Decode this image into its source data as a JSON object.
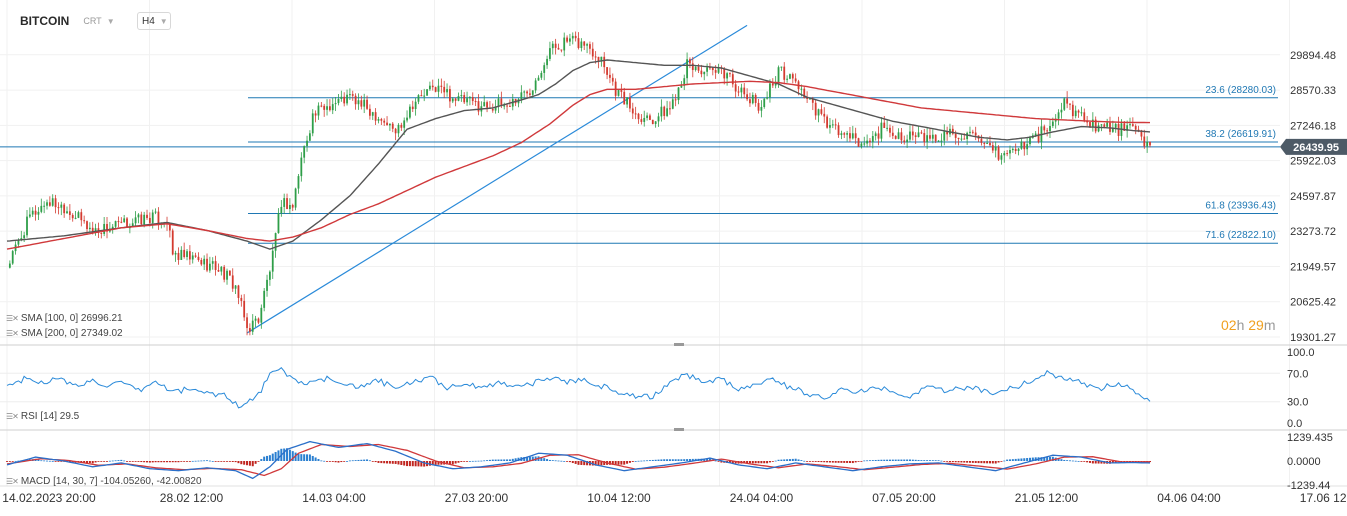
{
  "header": {
    "symbol": "BITCOIN",
    "chart_type": "CRT",
    "timeframe": "H4"
  },
  "indicators": {
    "sma100": "SMA [100, 0] 26996.21",
    "sma200": "SMA [200, 0] 27349.02",
    "rsi": "RSI [14] 29.5",
    "macd": "MACD [14, 30, 7] -104.05260, -42.00820"
  },
  "timer": {
    "hours": "02",
    "h": "h",
    "minutes": "29",
    "m": "m"
  },
  "colors": {
    "price_up": "#2e9e48",
    "price_down": "#d43a2f",
    "sma100": "#555555",
    "sma200": "#d0393b",
    "fib": "#1f78b4",
    "trend": "#2a8ad9",
    "rsi": "#2a8ad9",
    "macd_line": "#2a6fc9",
    "signal": "#d0393b",
    "current_price_bg": "#4d5a66"
  },
  "chart_data": {
    "type": "candlestick",
    "x_ticks": [
      "14.02.2023 20:00",
      "28.02 12:00",
      "14.03 04:00",
      "27.03 20:00",
      "10.04 12:00",
      "24.04 04:00",
      "07.05 20:00",
      "21.05 12:00",
      "04.06 04:00",
      "17.06 12:00"
    ],
    "y_ticks": [
      "29894.48",
      "28570.33",
      "27246.18",
      "25922.03",
      "24597.87",
      "23273.72",
      "21949.57",
      "20625.42",
      "19301.27"
    ],
    "ylim": [
      19301.27,
      31000
    ],
    "current_price": "26439.95",
    "fib_levels": [
      {
        "label": "23.6 (28280.03)",
        "value": 28280.03
      },
      {
        "label": "38.2 (26619.91)",
        "value": 26619.91
      },
      {
        "label": "61.8 (23936.43)",
        "value": 23936.43
      },
      {
        "label": "71.6 (22822.10)",
        "value": 22822.1
      }
    ],
    "series": [
      {
        "name": "BITCOIN",
        "kind": "close",
        "anchors": [
          [
            0,
            21900
          ],
          [
            8,
            23800
          ],
          [
            14,
            24400
          ],
          [
            20,
            24200
          ],
          [
            30,
            23300
          ],
          [
            40,
            23500
          ],
          [
            50,
            23800
          ],
          [
            56,
            23700
          ],
          [
            58,
            22400
          ],
          [
            66,
            22200
          ],
          [
            74,
            21900
          ],
          [
            80,
            21200
          ],
          [
            84,
            19600
          ],
          [
            88,
            20000
          ],
          [
            93,
            22300
          ],
          [
            96,
            24400
          ],
          [
            100,
            24200
          ],
          [
            103,
            26000
          ],
          [
            107,
            27600
          ],
          [
            112,
            28000
          ],
          [
            120,
            28300
          ],
          [
            130,
            27600
          ],
          [
            136,
            27000
          ],
          [
            142,
            28100
          ],
          [
            150,
            28700
          ],
          [
            158,
            28200
          ],
          [
            166,
            28000
          ],
          [
            175,
            28000
          ],
          [
            183,
            28600
          ],
          [
            190,
            30100
          ],
          [
            196,
            30400
          ],
          [
            202,
            30300
          ],
          [
            208,
            29800
          ],
          [
            213,
            28600
          ],
          [
            220,
            27700
          ],
          [
            226,
            27500
          ],
          [
            232,
            27900
          ],
          [
            238,
            29500
          ],
          [
            246,
            29200
          ],
          [
            252,
            29200
          ],
          [
            258,
            28300
          ],
          [
            264,
            28000
          ],
          [
            270,
            29300
          ],
          [
            276,
            28900
          ],
          [
            282,
            27900
          ],
          [
            288,
            27200
          ],
          [
            294,
            26800
          ],
          [
            300,
            26500
          ],
          [
            306,
            27100
          ],
          [
            312,
            26900
          ],
          [
            318,
            26800
          ],
          [
            324,
            26700
          ],
          [
            330,
            27000
          ],
          [
            336,
            26900
          ],
          [
            342,
            26400
          ],
          [
            348,
            26100
          ],
          [
            354,
            26400
          ],
          [
            360,
            26800
          ],
          [
            366,
            27300
          ],
          [
            370,
            28100
          ],
          [
            376,
            27600
          ],
          [
            382,
            27200
          ],
          [
            388,
            27100
          ],
          [
            394,
            27100
          ],
          [
            400,
            26400
          ]
        ]
      },
      {
        "name": "SMA [100, 0]",
        "kind": "sma",
        "anchors": [
          [
            0,
            22900
          ],
          [
            20,
            23100
          ],
          [
            40,
            23400
          ],
          [
            56,
            23600
          ],
          [
            70,
            23300
          ],
          [
            84,
            22900
          ],
          [
            92,
            22600
          ],
          [
            100,
            22900
          ],
          [
            110,
            23700
          ],
          [
            120,
            24600
          ],
          [
            130,
            25800
          ],
          [
            140,
            27100
          ],
          [
            150,
            27500
          ],
          [
            160,
            27800
          ],
          [
            170,
            27900
          ],
          [
            180,
            28200
          ],
          [
            186,
            28400
          ],
          [
            192,
            28800
          ],
          [
            198,
            29300
          ],
          [
            204,
            29600
          ],
          [
            210,
            29700
          ],
          [
            220,
            29600
          ],
          [
            230,
            29500
          ],
          [
            240,
            29500
          ],
          [
            250,
            29400
          ],
          [
            260,
            29100
          ],
          [
            270,
            28800
          ],
          [
            280,
            28300
          ],
          [
            290,
            28000
          ],
          [
            300,
            27700
          ],
          [
            310,
            27400
          ],
          [
            320,
            27200
          ],
          [
            330,
            27000
          ],
          [
            340,
            26800
          ],
          [
            350,
            26700
          ],
          [
            358,
            26800
          ],
          [
            366,
            27000
          ],
          [
            376,
            27200
          ],
          [
            386,
            27150
          ],
          [
            394,
            27050
          ],
          [
            400,
            27000
          ]
        ]
      },
      {
        "name": "SMA [200, 0]",
        "kind": "sma",
        "anchors": [
          [
            0,
            22600
          ],
          [
            20,
            23000
          ],
          [
            40,
            23400
          ],
          [
            56,
            23550
          ],
          [
            70,
            23300
          ],
          [
            84,
            23000
          ],
          [
            92,
            22900
          ],
          [
            100,
            23050
          ],
          [
            110,
            23400
          ],
          [
            120,
            23900
          ],
          [
            130,
            24300
          ],
          [
            140,
            24800
          ],
          [
            150,
            25300
          ],
          [
            160,
            25700
          ],
          [
            170,
            26100
          ],
          [
            180,
            26600
          ],
          [
            190,
            27300
          ],
          [
            198,
            28000
          ],
          [
            204,
            28400
          ],
          [
            210,
            28600
          ],
          [
            220,
            28600
          ],
          [
            230,
            28700
          ],
          [
            240,
            28800
          ],
          [
            250,
            28850
          ],
          [
            260,
            28900
          ],
          [
            270,
            28850
          ],
          [
            280,
            28700
          ],
          [
            290,
            28500
          ],
          [
            300,
            28300
          ],
          [
            310,
            28100
          ],
          [
            320,
            27900
          ],
          [
            330,
            27800
          ],
          [
            340,
            27700
          ],
          [
            350,
            27600
          ],
          [
            360,
            27500
          ],
          [
            370,
            27450
          ],
          [
            380,
            27400
          ],
          [
            390,
            27360
          ],
          [
            400,
            27350
          ]
        ]
      },
      {
        "name": "RSI [14]",
        "kind": "rsi",
        "anchors": [
          [
            0,
            52
          ],
          [
            6,
            62
          ],
          [
            12,
            58
          ],
          [
            18,
            62
          ],
          [
            24,
            52
          ],
          [
            30,
            60
          ],
          [
            36,
            52
          ],
          [
            40,
            56
          ],
          [
            46,
            45
          ],
          [
            52,
            58
          ],
          [
            58,
            44
          ],
          [
            64,
            48
          ],
          [
            70,
            42
          ],
          [
            76,
            40
          ],
          [
            82,
            22
          ],
          [
            88,
            40
          ],
          [
            92,
            68
          ],
          [
            96,
            75
          ],
          [
            100,
            62
          ],
          [
            106,
            55
          ],
          [
            112,
            62
          ],
          [
            118,
            57
          ],
          [
            124,
            50
          ],
          [
            130,
            60
          ],
          [
            136,
            48
          ],
          [
            142,
            58
          ],
          [
            148,
            64
          ],
          [
            154,
            50
          ],
          [
            160,
            56
          ],
          [
            166,
            48
          ],
          [
            172,
            58
          ],
          [
            178,
            52
          ],
          [
            184,
            56
          ],
          [
            190,
            64
          ],
          [
            196,
            58
          ],
          [
            202,
            62
          ],
          [
            208,
            52
          ],
          [
            214,
            44
          ],
          [
            220,
            38
          ],
          [
            226,
            36
          ],
          [
            232,
            58
          ],
          [
            238,
            68
          ],
          [
            244,
            58
          ],
          [
            250,
            62
          ],
          [
            256,
            46
          ],
          [
            262,
            56
          ],
          [
            268,
            62
          ],
          [
            274,
            50
          ],
          [
            280,
            42
          ],
          [
            286,
            36
          ],
          [
            292,
            48
          ],
          [
            298,
            42
          ],
          [
            304,
            52
          ],
          [
            310,
            45
          ],
          [
            316,
            38
          ],
          [
            322,
            52
          ],
          [
            328,
            44
          ],
          [
            334,
            50
          ],
          [
            340,
            48
          ],
          [
            346,
            42
          ],
          [
            352,
            50
          ],
          [
            358,
            58
          ],
          [
            364,
            70
          ],
          [
            370,
            64
          ],
          [
            376,
            56
          ],
          [
            382,
            48
          ],
          [
            388,
            56
          ],
          [
            394,
            48
          ],
          [
            400,
            30
          ]
        ]
      },
      {
        "name": "MACD",
        "kind": "macd",
        "anchors": [
          [
            0,
            -200
          ],
          [
            10,
            200
          ],
          [
            20,
            0
          ],
          [
            30,
            -300
          ],
          [
            40,
            -100
          ],
          [
            50,
            -400
          ],
          [
            60,
            -500
          ],
          [
            70,
            -350
          ],
          [
            80,
            -500
          ],
          [
            86,
            -900
          ],
          [
            92,
            -300
          ],
          [
            98,
            600
          ],
          [
            106,
            1000
          ],
          [
            116,
            700
          ],
          [
            126,
            900
          ],
          [
            136,
            500
          ],
          [
            146,
            -100
          ],
          [
            156,
            -400
          ],
          [
            166,
            -300
          ],
          [
            176,
            -100
          ],
          [
            186,
            400
          ],
          [
            196,
            300
          ],
          [
            206,
            -200
          ],
          [
            216,
            -500
          ],
          [
            226,
            -300
          ],
          [
            236,
            -100
          ],
          [
            246,
            150
          ],
          [
            256,
            -200
          ],
          [
            266,
            -400
          ],
          [
            276,
            -100
          ],
          [
            286,
            -300
          ],
          [
            296,
            -500
          ],
          [
            306,
            -300
          ],
          [
            316,
            -150
          ],
          [
            326,
            -100
          ],
          [
            336,
            -300
          ],
          [
            346,
            -500
          ],
          [
            356,
            -100
          ],
          [
            366,
            300
          ],
          [
            376,
            200
          ],
          [
            386,
            -100
          ],
          [
            394,
            -80
          ],
          [
            400,
            -104
          ]
        ]
      },
      {
        "name": "Signal",
        "kind": "signal",
        "anchors": [
          [
            0,
            -150
          ],
          [
            12,
            120
          ],
          [
            22,
            20
          ],
          [
            32,
            -220
          ],
          [
            42,
            -150
          ],
          [
            52,
            -350
          ],
          [
            62,
            -450
          ],
          [
            72,
            -380
          ],
          [
            82,
            -450
          ],
          [
            90,
            -750
          ],
          [
            96,
            -400
          ],
          [
            102,
            400
          ],
          [
            110,
            850
          ],
          [
            120,
            750
          ],
          [
            130,
            850
          ],
          [
            140,
            550
          ],
          [
            150,
            0
          ],
          [
            160,
            -350
          ],
          [
            170,
            -300
          ],
          [
            180,
            -120
          ],
          [
            190,
            300
          ],
          [
            200,
            320
          ],
          [
            210,
            -100
          ],
          [
            220,
            -420
          ],
          [
            230,
            -320
          ],
          [
            240,
            -120
          ],
          [
            250,
            100
          ],
          [
            260,
            -150
          ],
          [
            270,
            -350
          ],
          [
            280,
            -150
          ],
          [
            290,
            -280
          ],
          [
            300,
            -450
          ],
          [
            310,
            -320
          ],
          [
            320,
            -180
          ],
          [
            330,
            -120
          ],
          [
            340,
            -260
          ],
          [
            350,
            -420
          ],
          [
            360,
            -150
          ],
          [
            370,
            200
          ],
          [
            380,
            220
          ],
          [
            390,
            -50
          ],
          [
            400,
            -42
          ]
        ]
      }
    ]
  }
}
